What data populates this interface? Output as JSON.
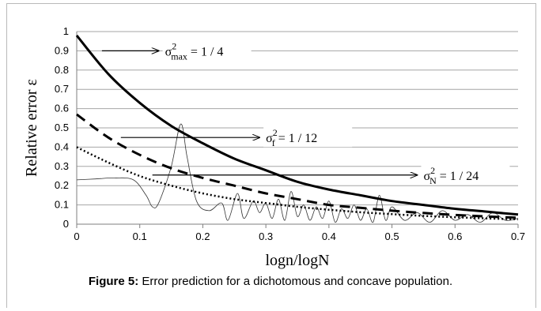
{
  "caption": {
    "label": "Figure 5:",
    "text": " Error prediction for a dichotomous and concave population."
  },
  "chart_data": {
    "type": "line",
    "xlabel": "logn/logN",
    "ylabel": "Relative error ε",
    "xlim": [
      0,
      0.7
    ],
    "ylim": [
      0,
      1
    ],
    "x_ticks": [
      0,
      0.1,
      0.2,
      0.3,
      0.4,
      0.5,
      0.6,
      0.7
    ],
    "y_ticks": [
      0,
      0.1,
      0.2,
      0.3,
      0.4,
      0.5,
      0.6,
      0.7,
      0.8,
      0.9,
      1
    ],
    "grid": "horizontal",
    "series": [
      {
        "style": "solid-thick",
        "x": [
          0,
          0.05,
          0.1,
          0.15,
          0.2,
          0.25,
          0.3,
          0.35,
          0.4,
          0.45,
          0.5,
          0.55,
          0.6,
          0.65,
          0.7
        ],
        "y": [
          0.98,
          0.78,
          0.63,
          0.51,
          0.42,
          0.34,
          0.28,
          0.22,
          0.18,
          0.15,
          0.12,
          0.1,
          0.08,
          0.065,
          0.05
        ]
      },
      {
        "style": "dashed-thick",
        "x": [
          0,
          0.05,
          0.1,
          0.15,
          0.2,
          0.25,
          0.3,
          0.35,
          0.4,
          0.45,
          0.5,
          0.55,
          0.6,
          0.65,
          0.7
        ],
        "y": [
          0.57,
          0.45,
          0.36,
          0.29,
          0.24,
          0.2,
          0.16,
          0.13,
          0.1,
          0.085,
          0.07,
          0.058,
          0.048,
          0.04,
          0.033
        ]
      },
      {
        "style": "dotted",
        "x": [
          0,
          0.05,
          0.1,
          0.15,
          0.2,
          0.25,
          0.3,
          0.35,
          0.4,
          0.45,
          0.5,
          0.55,
          0.6,
          0.65,
          0.7
        ],
        "y": [
          0.4,
          0.32,
          0.25,
          0.2,
          0.16,
          0.13,
          0.11,
          0.09,
          0.075,
          0.062,
          0.052,
          0.043,
          0.036,
          0.03,
          0.025
        ]
      },
      {
        "style": "thin-oscillating",
        "x": [
          0,
          0.03,
          0.06,
          0.09,
          0.11,
          0.12,
          0.13,
          0.15,
          0.165,
          0.175,
          0.19,
          0.21,
          0.23,
          0.24,
          0.255,
          0.265,
          0.28,
          0.29,
          0.3,
          0.31,
          0.32,
          0.33,
          0.34,
          0.35,
          0.36,
          0.37,
          0.38,
          0.39,
          0.4,
          0.41,
          0.42,
          0.43,
          0.44,
          0.45,
          0.46,
          0.47,
          0.48,
          0.49,
          0.5,
          0.52,
          0.54,
          0.56,
          0.58,
          0.6,
          0.62,
          0.64,
          0.66,
          0.68,
          0.7
        ],
        "y": [
          0.23,
          0.235,
          0.24,
          0.23,
          0.15,
          0.09,
          0.11,
          0.3,
          0.52,
          0.35,
          0.12,
          0.07,
          0.11,
          0.02,
          0.16,
          0.03,
          0.12,
          0.06,
          0.11,
          0.03,
          0.13,
          0.02,
          0.17,
          0.04,
          0.1,
          0.02,
          0.09,
          0.03,
          0.12,
          0.01,
          0.08,
          0.03,
          0.1,
          0.02,
          0.08,
          0.01,
          0.15,
          0.02,
          0.09,
          0.02,
          0.06,
          0.01,
          0.07,
          0.02,
          0.05,
          0.01,
          0.06,
          0.02,
          0.03
        ]
      }
    ],
    "annotations": [
      {
        "label": "σ",
        "sup": "2",
        "sub": "max",
        "value": " = 1 / 4",
        "arrow_from": [
          0.04,
          0.9
        ],
        "arrow_to": [
          0.13,
          0.9
        ]
      },
      {
        "label": "σ",
        "sup": "2",
        "sub": "f",
        "value": " = 1 / 12",
        "arrow_from": [
          0.07,
          0.45
        ],
        "arrow_to": [
          0.29,
          0.45
        ]
      },
      {
        "label": "σ",
        "sup": "2",
        "sub": "N",
        "value": " = 1 / 24",
        "arrow_from": [
          0.12,
          0.255
        ],
        "arrow_to": [
          0.54,
          0.255
        ]
      }
    ]
  }
}
